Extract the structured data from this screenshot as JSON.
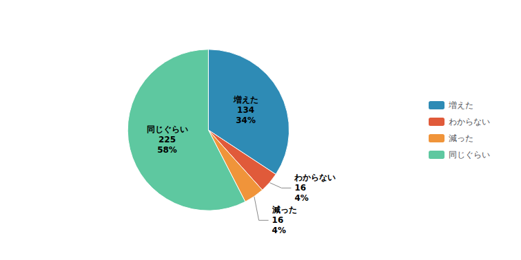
{
  "chart_data": {
    "type": "pie",
    "categories": [
      "増えた",
      "わからない",
      "減った",
      "同じぐらい"
    ],
    "values": [
      134,
      16,
      16,
      225
    ],
    "percentages": [
      34,
      4,
      4,
      58
    ],
    "percentage_labels": [
      "34%",
      "4%",
      "4%",
      "58%"
    ],
    "colors": [
      "#2e8bb5",
      "#e05a3a",
      "#f0943a",
      "#5ec8a0"
    ],
    "data_labels": true,
    "legend": "right"
  }
}
